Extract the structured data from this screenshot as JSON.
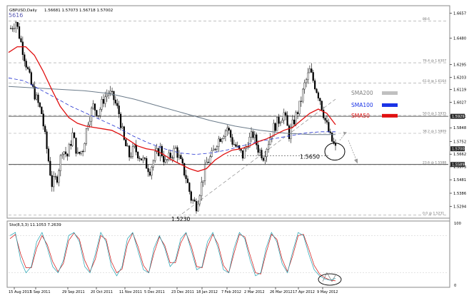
{
  "header": {
    "title": "GBPUSD,Daily",
    "ohlc": "1.56681 1.57073 1.56718 1.57002",
    "corner_label": "5616"
  },
  "stoch_header": "Sto(8,3,3) 11.1053 7.2639",
  "chart_data": {
    "type": "line",
    "symbol": "GBPUSD",
    "timeframe": "Daily",
    "y_axis_ticks": [
      "1.6657",
      "1.6480",
      "1.6295",
      "1.6203",
      "1.6119",
      "1.6027",
      "1.5931",
      "1.5848",
      "1.5752",
      "1.5662",
      "1.5573",
      "1.5481",
      "1.5386",
      "1.5294"
    ],
    "ylim": [
      1.522,
      1.67
    ],
    "x_axis_ticks": [
      "15 Aug 2011",
      "5 Sep 2011",
      "29 Sep 2011",
      "20 Oct 2011",
      "11 Nov 2011",
      "5 Dec 2011",
      "23 Dec 2011",
      "18 Jan 2012",
      "7 Feb 2012",
      "2 Mar 2012",
      "26 Mar 2012",
      "17 Apr 2012",
      "9 May 2012"
    ],
    "price_tags": [
      {
        "text": "1.5929",
        "value": 1.5929
      },
      {
        "text": "1.5700",
        "value": 1.57
      },
      {
        "text": "1.5589",
        "value": 1.5589
      }
    ],
    "fib_levels": [
      {
        "label": "88.6",
        "value": 1.6602
      },
      {
        "label": "76.4 @ 1.6307",
        "value": 1.6307
      },
      {
        "label": "61.8 @ 1.6164",
        "value": 1.6164
      },
      {
        "label": "50.0 @ 1.5935",
        "value": 1.5935
      },
      {
        "label": "38.2 @ 1.5809",
        "value": 1.5809
      },
      {
        "label": "23.6 @ 1.5588",
        "value": 1.5588
      },
      {
        "label": "0.0 @ 1.5231",
        "value": 1.5231
      }
    ],
    "annotations": [
      {
        "text": "1.5650",
        "value": 1.565
      },
      {
        "text": "1.5230",
        "value": 1.523
      }
    ],
    "legend": [
      {
        "name": "SMA200",
        "color": "#c0c0c0"
      },
      {
        "name": "SMA100",
        "color": "#1a33e6"
      },
      {
        "name": "SMA50",
        "color": "#e01010"
      }
    ],
    "price_close": [
      1.655,
      1.66,
      1.645,
      1.63,
      1.615,
      1.605,
      1.595,
      1.57,
      1.545,
      1.55,
      1.57,
      1.565,
      1.58,
      1.565,
      1.57,
      1.59,
      1.6,
      1.595,
      1.605,
      1.61,
      1.605,
      1.595,
      1.575,
      1.565,
      1.57,
      1.565,
      1.56,
      1.555,
      1.565,
      1.57,
      1.56,
      1.565,
      1.57,
      1.56,
      1.55,
      1.535,
      1.53,
      1.545,
      1.56,
      1.565,
      1.575,
      1.58,
      1.585,
      1.575,
      1.57,
      1.565,
      1.575,
      1.58,
      1.57,
      1.565,
      1.575,
      1.585,
      1.59,
      1.595,
      1.58,
      1.59,
      1.6,
      1.615,
      1.625,
      1.615,
      1.605,
      1.59,
      1.578,
      1.57
    ],
    "sma50": [
      1.638,
      1.642,
      1.642,
      1.636,
      1.625,
      1.612,
      1.6,
      1.592,
      1.588,
      1.586,
      1.585,
      1.584,
      1.583,
      1.58,
      1.576,
      1.572,
      1.57,
      1.569,
      1.566,
      1.562,
      1.559,
      1.556,
      1.554,
      1.556,
      1.562,
      1.566,
      1.569,
      1.57,
      1.572,
      1.575,
      1.577,
      1.58,
      1.583,
      1.585,
      1.59,
      1.595,
      1.598,
      1.595,
      1.587
    ],
    "sma100": [
      1.62,
      1.618,
      1.612,
      1.606,
      1.6,
      1.595,
      1.59,
      1.585,
      1.579,
      1.574,
      1.57,
      1.567,
      1.566,
      1.567,
      1.569,
      1.572,
      1.575,
      1.577,
      1.579,
      1.581,
      1.582,
      1.582
    ],
    "sma200": [
      1.614,
      1.613,
      1.612,
      1.611,
      1.609,
      1.605,
      1.6,
      1.595,
      1.59,
      1.586,
      1.583,
      1.581,
      1.58,
      1.58
    ],
    "stoch_ylim": [
      0,
      100
    ],
    "stoch_ticks": [
      "100",
      "0"
    ],
    "stoch_main": [
      80,
      85,
      40,
      20,
      30,
      70,
      85,
      60,
      30,
      20,
      40,
      80,
      85,
      70,
      30,
      20,
      50,
      85,
      70,
      30,
      15,
      30,
      75,
      85,
      55,
      25,
      20,
      60,
      80,
      60,
      30,
      40,
      75,
      85,
      55,
      25,
      30,
      70,
      85,
      60,
      25,
      20,
      60,
      85,
      75,
      40,
      15,
      20,
      60,
      85,
      70,
      35,
      20,
      55,
      85,
      80,
      50,
      25,
      15,
      10,
      8,
      11
    ],
    "stoch_signal": [
      75,
      82,
      50,
      28,
      28,
      60,
      80,
      65,
      38,
      22,
      35,
      72,
      84,
      74,
      40,
      22,
      42,
      80,
      74,
      38,
      20,
      26,
      66,
      84,
      62,
      32,
      20,
      52,
      78,
      64,
      36,
      36,
      68,
      84,
      62,
      30,
      28,
      62,
      82,
      66,
      32,
      20,
      52,
      82,
      78,
      48,
      20,
      18,
      52,
      82,
      74,
      42,
      22,
      48,
      80,
      82,
      58,
      32,
      18,
      12,
      8,
      7
    ]
  }
}
